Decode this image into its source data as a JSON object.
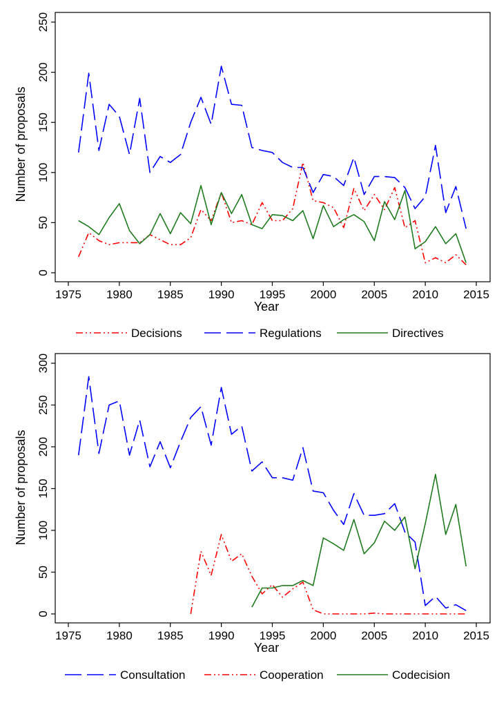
{
  "chart_data": [
    {
      "type": "line",
      "xlabel": "Year",
      "ylabel": "Number of proposals",
      "xlim": [
        1975,
        2015
      ],
      "ylim": [
        0,
        250
      ],
      "xticks": [
        "1975",
        "1980",
        "1985",
        "1990",
        "1995",
        "2000",
        "2005",
        "2010",
        "2015"
      ],
      "yticks": [
        "0",
        "50",
        "100",
        "150",
        "200",
        "250"
      ],
      "grid": false,
      "legend_position": "bottom",
      "x": [
        1976,
        1977,
        1978,
        1979,
        1980,
        1981,
        1982,
        1983,
        1984,
        1985,
        1986,
        1987,
        1988,
        1989,
        1990,
        1991,
        1992,
        1993,
        1994,
        1995,
        1996,
        1997,
        1998,
        1999,
        2000,
        2001,
        2002,
        2003,
        2004,
        2005,
        2006,
        2007,
        2008,
        2009,
        2010,
        2011,
        2012,
        2013,
        2014
      ],
      "series": [
        {
          "name": "Decisions",
          "color": "#ff0000",
          "dash": "dash-dot-dot",
          "values": [
            16,
            40,
            32,
            28,
            30,
            30,
            30,
            38,
            33,
            28,
            28,
            35,
            63,
            52,
            80,
            50,
            52,
            48,
            70,
            52,
            52,
            64,
            110,
            72,
            70,
            65,
            45,
            84,
            62,
            78,
            63,
            85,
            45,
            52,
            10,
            15,
            10,
            18,
            8
          ]
        },
        {
          "name": "Regulations",
          "color": "#0000ff",
          "dash": "long-dash",
          "values": [
            120,
            199,
            122,
            168,
            156,
            118,
            174,
            100,
            116,
            110,
            118,
            150,
            175,
            148,
            206,
            168,
            167,
            125,
            122,
            120,
            110,
            105,
            105,
            80,
            98,
            96,
            87,
            115,
            78,
            96,
            96,
            95,
            85,
            64,
            76,
            127,
            60,
            86,
            44
          ]
        },
        {
          "name": "Directives",
          "color": "#1e7b1e",
          "dash": "solid",
          "values": [
            52,
            46,
            38,
            55,
            69,
            42,
            29,
            38,
            59,
            39,
            60,
            49,
            87,
            48,
            80,
            59,
            78,
            48,
            44,
            58,
            57,
            52,
            62,
            34,
            67,
            46,
            53,
            58,
            51,
            32,
            71,
            53,
            82,
            24,
            31,
            46,
            29,
            39,
            10
          ]
        }
      ]
    },
    {
      "type": "line",
      "xlabel": "Year",
      "ylabel": "Number of proposals",
      "xlim": [
        1975,
        2015
      ],
      "ylim": [
        0,
        300
      ],
      "xticks": [
        "1975",
        "1980",
        "1985",
        "1990",
        "1995",
        "2000",
        "2005",
        "2010",
        "2015"
      ],
      "yticks": [
        "0",
        "50",
        "100",
        "150",
        "200",
        "250",
        "300"
      ],
      "grid": false,
      "legend_position": "bottom",
      "series": [
        {
          "name": "Consultation",
          "color": "#0000ff",
          "dash": "long-dash",
          "x": [
            1976,
            1977,
            1978,
            1979,
            1980,
            1981,
            1982,
            1983,
            1984,
            1985,
            1986,
            1987,
            1988,
            1989,
            1990,
            1991,
            1992,
            1993,
            1994,
            1995,
            1996,
            1997,
            1998,
            1999,
            2000,
            2001,
            2002,
            2003,
            2004,
            2005,
            2006,
            2007,
            2008,
            2009,
            2010,
            2011,
            2012,
            2013,
            2014
          ],
          "values": [
            190,
            284,
            192,
            250,
            255,
            190,
            232,
            176,
            206,
            175,
            206,
            235,
            248,
            202,
            271,
            215,
            225,
            171,
            182,
            163,
            163,
            160,
            199,
            147,
            145,
            124,
            107,
            144,
            118,
            118,
            120,
            132,
            98,
            86,
            10,
            21,
            7,
            11,
            4
          ]
        },
        {
          "name": "Cooperation",
          "color": "#ff0000",
          "dash": "dash-dot-dot",
          "x": [
            1987,
            1988,
            1989,
            1990,
            1991,
            1992,
            1993,
            1994,
            1995,
            1996,
            1997,
            1998,
            1999,
            2000,
            2001,
            2002,
            2003,
            2004,
            2005,
            2006,
            2007,
            2008,
            2009,
            2010,
            2011,
            2012,
            2013,
            2014
          ],
          "values": [
            0,
            75,
            46,
            95,
            63,
            72,
            45,
            24,
            35,
            20,
            30,
            38,
            5,
            0,
            0,
            0,
            0,
            0,
            1,
            0,
            0,
            0,
            0,
            0,
            0,
            0,
            0,
            0
          ]
        },
        {
          "name": "Codecision",
          "color": "#1e7b1e",
          "dash": "solid",
          "x": [
            1993,
            1994,
            1995,
            1996,
            1997,
            1998,
            1999,
            2000,
            2001,
            2002,
            2003,
            2004,
            2005,
            2006,
            2007,
            2008,
            2009,
            2010,
            2011,
            2012,
            2013,
            2014
          ],
          "values": [
            8,
            31,
            31,
            34,
            34,
            40,
            34,
            91,
            84,
            76,
            113,
            72,
            85,
            111,
            100,
            116,
            54,
            108,
            167,
            95,
            131,
            57
          ]
        }
      ]
    }
  ]
}
